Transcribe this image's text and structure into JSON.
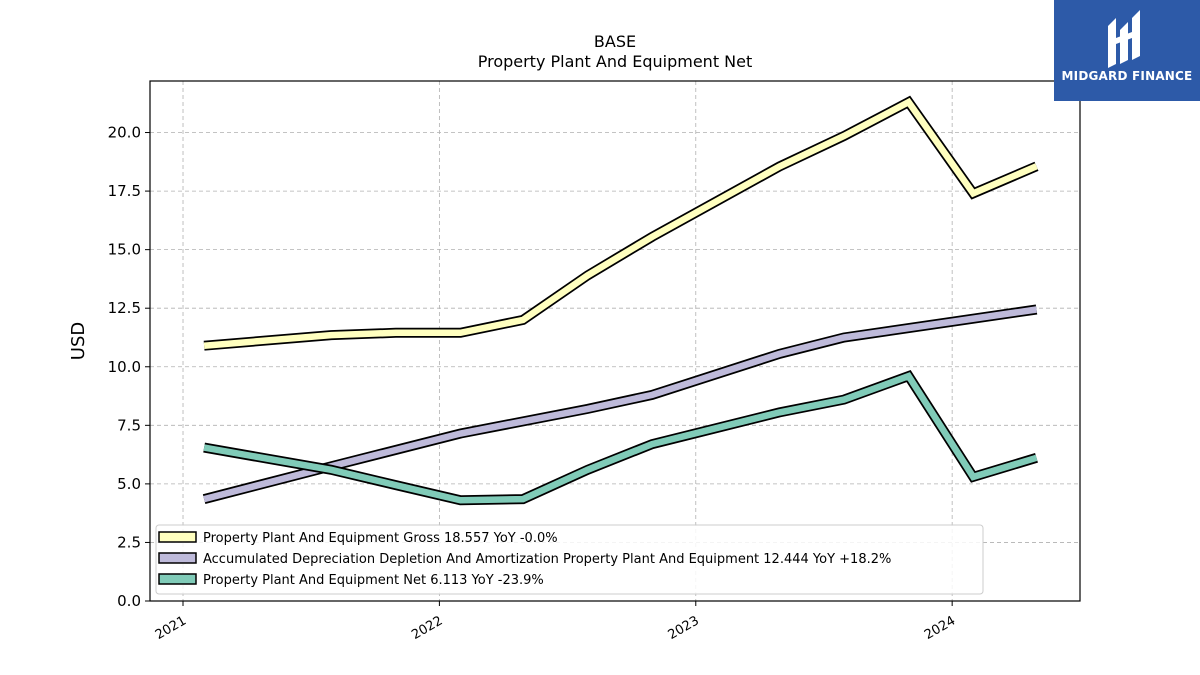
{
  "chart_data": {
    "type": "line",
    "title": "BASE",
    "subtitle": "Property Plant And Equipment Net",
    "ylabel": "USD",
    "xlabel": "",
    "ylim": [
      0,
      22.2
    ],
    "yticks": [
      0.0,
      2.5,
      5.0,
      7.5,
      10.0,
      12.5,
      15.0,
      17.5,
      20.0
    ],
    "ytick_labels": [
      "0.0",
      "2.5",
      "5.0",
      "7.5",
      "10.0",
      "12.5",
      "15.0",
      "17.5",
      "20.0"
    ],
    "xlim": [
      "2020-11-15",
      "2024-07-01"
    ],
    "xticks": [
      "2021-01-01",
      "2022-01-01",
      "2023-01-01",
      "2024-01-01"
    ],
    "xtick_labels": [
      "2021",
      "2022",
      "2023",
      "2024"
    ],
    "grid": true,
    "legend_position": "lower-left",
    "series": [
      {
        "name": "Property Plant And Equipment Gross  18.557 YoY -0.0%",
        "color": "#ffffbf",
        "x": [
          "2021-01-31",
          "2021-07-31",
          "2021-10-31",
          "2022-01-31",
          "2022-04-30",
          "2022-07-31",
          "2022-10-31",
          "2023-04-30",
          "2023-07-31",
          "2023-10-31",
          "2024-01-31",
          "2024-04-30"
        ],
        "values": [
          10.9,
          11.35,
          11.45,
          11.45,
          12.0,
          13.9,
          15.55,
          18.55,
          19.85,
          21.3,
          17.4,
          18.557
        ]
      },
      {
        "name": "Accumulated Depreciation Depletion And Amortization Property Plant And Equipment  12.444 YoY +18.2%",
        "color": "#bebada",
        "x": [
          "2021-01-31",
          "2021-07-31",
          "2022-01-31",
          "2022-07-31",
          "2022-10-31",
          "2023-04-30",
          "2023-07-31",
          "2024-04-30"
        ],
        "values": [
          4.35,
          5.75,
          7.15,
          8.2,
          8.8,
          10.55,
          11.25,
          12.444
        ]
      },
      {
        "name": "Property Plant And Equipment Net  6.113 YoY -23.9%",
        "color": "#80cbb8",
        "x": [
          "2021-01-31",
          "2021-07-31",
          "2021-10-31",
          "2022-01-31",
          "2022-04-30",
          "2022-07-31",
          "2022-10-31",
          "2023-04-30",
          "2023-07-31",
          "2023-10-31",
          "2024-01-31",
          "2024-04-30"
        ],
        "values": [
          6.55,
          5.6,
          4.95,
          4.3,
          4.35,
          5.6,
          6.7,
          8.05,
          8.6,
          9.6,
          5.3,
          6.113
        ]
      }
    ]
  },
  "logo": {
    "brand": "MIDGARD FINANCE",
    "background": "#2d5aa8"
  }
}
